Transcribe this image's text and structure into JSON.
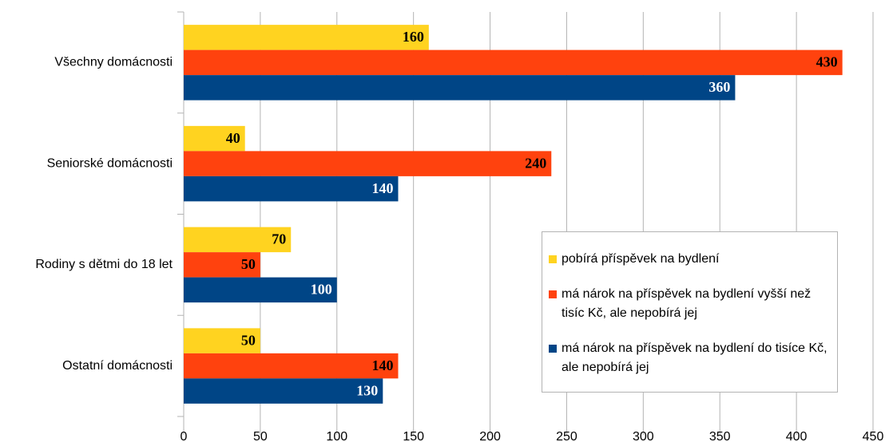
{
  "chart_data": {
    "type": "bar",
    "orientation": "horizontal",
    "categories": [
      "Všechny domácnosti",
      "Seniorské domácnosti",
      "Rodiny s dětmi do 18 let",
      "Ostatní domácnosti"
    ],
    "series": [
      {
        "name": "pobírá příspěvek na bydlení",
        "color": "#ffd320",
        "values": [
          160,
          40,
          70,
          50
        ]
      },
      {
        "name": "má nárok na příspěvek na bydlení vyšší než tisíc Kč, ale nepobírá jej",
        "color": "#ff420e",
        "values": [
          430,
          240,
          50,
          140
        ]
      },
      {
        "name": "má nárok na příspěvek na bydlení do tisíce Kč, ale nepobírá jej",
        "color": "#004586",
        "values": [
          360,
          140,
          100,
          130
        ]
      }
    ],
    "xlim": [
      0,
      450
    ],
    "xticks": [
      0,
      50,
      100,
      150,
      200,
      250,
      300,
      350,
      400,
      450
    ],
    "grid": true,
    "legend": "right"
  }
}
